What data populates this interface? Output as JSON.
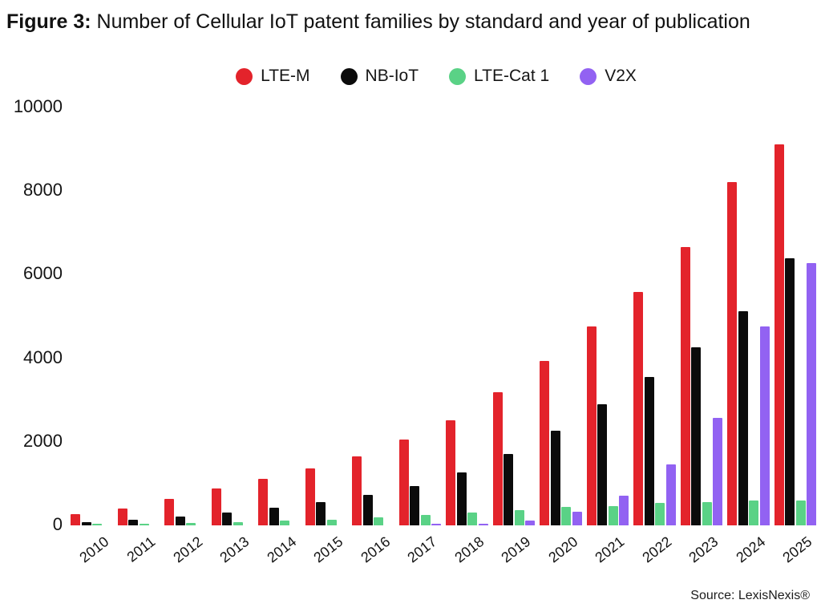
{
  "title": {
    "prefix": "Figure 3:",
    "rest": " Number of Cellular IoT patent families by standard and year of publication"
  },
  "source": "Source: LexisNexis®",
  "colors": {
    "lte_m": "#e3232b",
    "nb_iot": "#0b0b0b",
    "lte_cat1": "#5ad286",
    "v2x": "#9262f2",
    "text": "#111111"
  },
  "chart_data": {
    "type": "bar",
    "title": "Figure 3: Number of Cellular IoT patent families by standard and year of publication",
    "categories": [
      "2010",
      "2011",
      "2012",
      "2013",
      "2014",
      "2015",
      "2016",
      "2017",
      "2018",
      "2019",
      "2020",
      "2021",
      "2022",
      "2023",
      "2024",
      "2025"
    ],
    "series": [
      {
        "name": "LTE-M",
        "color": "#e3232b",
        "values": [
          265,
          410,
          640,
          875,
          1110,
          1360,
          1650,
          2050,
          2520,
          3180,
          3930,
          4760,
          5580,
          6660,
          8220,
          9110
        ]
      },
      {
        "name": "NB-IoT",
        "color": "#0b0b0b",
        "values": [
          85,
          140,
          215,
          310,
          430,
          560,
          720,
          950,
          1260,
          1710,
          2260,
          2900,
          3560,
          4260,
          5130,
          6400
        ]
      },
      {
        "name": "LTE-Cat 1",
        "color": "#5ad286",
        "values": [
          25,
          40,
          55,
          85,
          110,
          130,
          190,
          240,
          300,
          370,
          450,
          470,
          530,
          560,
          590,
          600
        ]
      },
      {
        "name": "V2X",
        "color": "#9262f2",
        "values": [
          0,
          0,
          0,
          0,
          0,
          0,
          0,
          20,
          45,
          115,
          320,
          710,
          1450,
          2580,
          4760,
          6280
        ]
      }
    ],
    "xlabel": "",
    "ylabel": "",
    "ylim": [
      0,
      10000
    ],
    "yticks": [
      0,
      2000,
      4000,
      6000,
      8000,
      10000
    ],
    "grid": false,
    "axis_lines": false,
    "legend_position": "top",
    "x_tick_rotation_deg": -38
  }
}
